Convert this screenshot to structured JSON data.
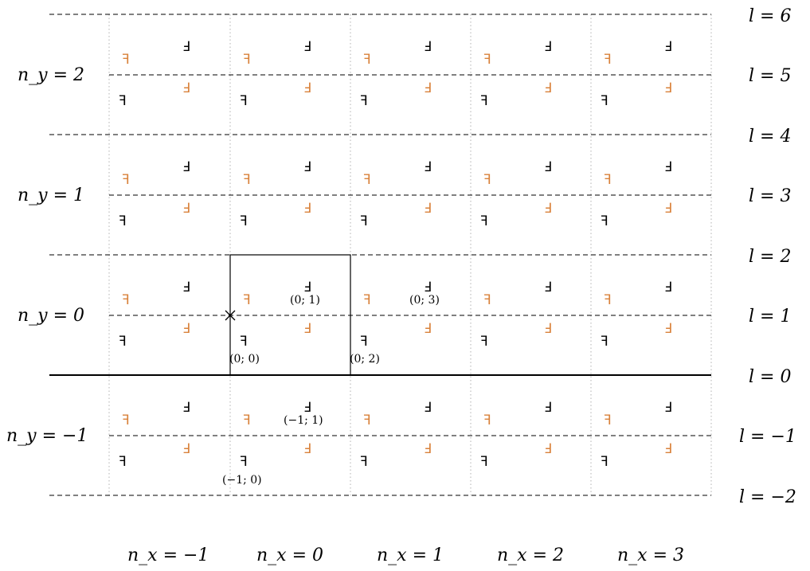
{
  "colors": {
    "black": "#000000",
    "orange": "#d9823b",
    "grid_dotted": "#b0b0b0"
  },
  "glyphs": {
    "black_upper": "Ⅎ",
    "black_lower": "ꟻ",
    "orange_upper": "ꟻ",
    "orange_lower": "Ⅎ"
  },
  "nx_labels": [
    "n_x = −1",
    "n_x = 0",
    "n_x = 1",
    "n_x = 2",
    "n_x = 3"
  ],
  "ny_labels": [
    "n_y = 2",
    "n_y = 1",
    "n_y = 0",
    "n_y = −1"
  ],
  "l_labels": [
    "l = 6",
    "l = 5",
    "l = 4",
    "l = 3",
    "l = 2",
    "l = 1",
    "l = 0",
    "l = −1",
    "l = −2"
  ],
  "coord_labels": [
    "(0; 1)",
    "(0; 3)",
    "(0; 0)",
    "(0; 2)",
    "(−1; 1)",
    "(−1; 0)"
  ]
}
